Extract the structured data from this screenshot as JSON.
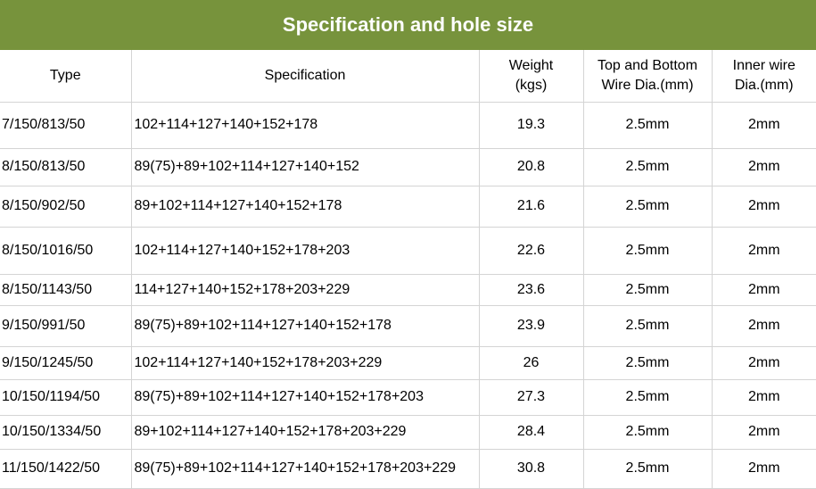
{
  "title": "Specification and hole size",
  "headers": {
    "type": "Type",
    "specification": "Specification",
    "weight_line1": "Weight",
    "weight_line2": "(kgs)",
    "top_bottom_line1": "Top and Bottom",
    "top_bottom_line2": "Wire Dia.(mm)",
    "inner_line1": "Inner wire",
    "inner_line2": "Dia.(mm)"
  },
  "rows": [
    {
      "type": "7/150/813/50",
      "spec": "102+114+127+140+152+178",
      "weight": "19.3",
      "top_bottom": "2.5mm",
      "inner": "2mm"
    },
    {
      "type": "8/150/813/50",
      "spec": "89(75)+89+102+114+127+140+152",
      "weight": "20.8",
      "top_bottom": "2.5mm",
      "inner": "2mm"
    },
    {
      "type": "8/150/902/50",
      "spec": "89+102+114+127+140+152+178",
      "weight": "21.6",
      "top_bottom": "2.5mm",
      "inner": "2mm"
    },
    {
      "type": "8/150/1016/50",
      "spec": "102+114+127+140+152+178+203",
      "weight": "22.6",
      "top_bottom": "2.5mm",
      "inner": "2mm"
    },
    {
      "type": "8/150/1143/50",
      "spec": "114+127+140+152+178+203+229",
      "weight": "23.6",
      "top_bottom": "2.5mm",
      "inner": "2mm"
    },
    {
      "type": "9/150/991/50",
      "spec": "89(75)+89+102+114+127+140+152+178",
      "weight": "23.9",
      "top_bottom": "2.5mm",
      "inner": "2mm"
    },
    {
      "type": "9/150/1245/50",
      "spec": "102+114+127+140+152+178+203+229",
      "weight": "26",
      "top_bottom": "2.5mm",
      "inner": "2mm"
    },
    {
      "type": "10/150/1194/50",
      "spec": "89(75)+89+102+114+127+140+152+178+203",
      "weight": "27.3",
      "top_bottom": "2.5mm",
      "inner": "2mm"
    },
    {
      "type": "10/150/1334/50",
      "spec": "89+102+114+127+140+152+178+203+229",
      "weight": "28.4",
      "top_bottom": "2.5mm",
      "inner": "2mm"
    },
    {
      "type": "11/150/1422/50",
      "spec": "89(75)+89+102+114+127+140+152+178+203+229",
      "weight": "30.8",
      "top_bottom": "2.5mm",
      "inner": "2mm"
    }
  ]
}
